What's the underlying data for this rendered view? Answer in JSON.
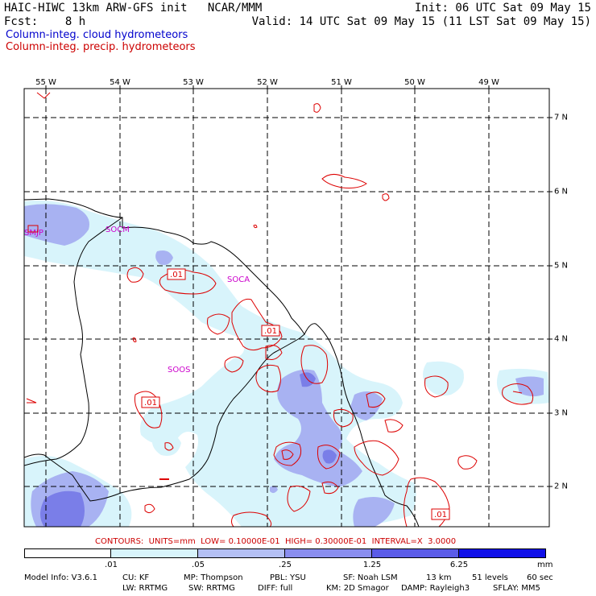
{
  "header": {
    "title": "HAIC-HIWC 13km ARW-GFS init   NCAR/MMM",
    "fcst": "Fcst:    8 h",
    "init": "Init: 06 UTC Sat 09 May 15",
    "valid": "Valid: 14 UTC Sat 09 May 15 (11 LST Sat 09 May 15)"
  },
  "legend": {
    "cloud": "Column-integ. cloud hydrometeors",
    "precip": "Column-integ. precip. hydrometeors",
    "cloud_color": "#0000cc",
    "precip_color": "#cc0000"
  },
  "map": {
    "longitudes": [
      "55 W",
      "54 W",
      "53 W",
      "52 W",
      "51 W",
      "50 W",
      "49 W"
    ],
    "latitudes": [
      "7 N",
      "6 N",
      "5 N",
      "4 N",
      "3 N",
      "2 N"
    ],
    "stations": [
      "SMJP",
      "SOCM",
      "SOCA",
      "SOOS"
    ],
    "contour_labels": [
      ".01",
      ".01",
      ".01",
      ".01"
    ],
    "coast_color": "#000000",
    "contour_color": "#dd0000"
  },
  "colorbar": {
    "labels": [
      ".01",
      ".05",
      ".25",
      "1.25",
      "6.25"
    ],
    "units": "mm",
    "colors": [
      "#ffffff",
      "#d8f4fb",
      "#b4c0f4",
      "#8a8eef",
      "#5b5ce8",
      "#1010e8"
    ]
  },
  "contours_note": "CONTOURS:  UNITS=mm  LOW= 0.10000E-01  HIGH= 0.30000E-01  INTERVAL=X  3.0000",
  "model_info": {
    "version": "Model Info: V3.6.1",
    "cu": "CU: KF",
    "mp": "MP: Thompson",
    "pbl": "PBL: YSU",
    "sf": "SF: Noah LSM",
    "res": "13 km",
    "levels": "51 levels",
    "dt": "60 sec",
    "lw": "LW: RRTMG",
    "sw": "SW: RRTMG",
    "diff": "DIFF: full",
    "km": "KM: 2D Smagor",
    "damp": "DAMP: Rayleigh3",
    "sflay": "SFLAY: MM5"
  }
}
